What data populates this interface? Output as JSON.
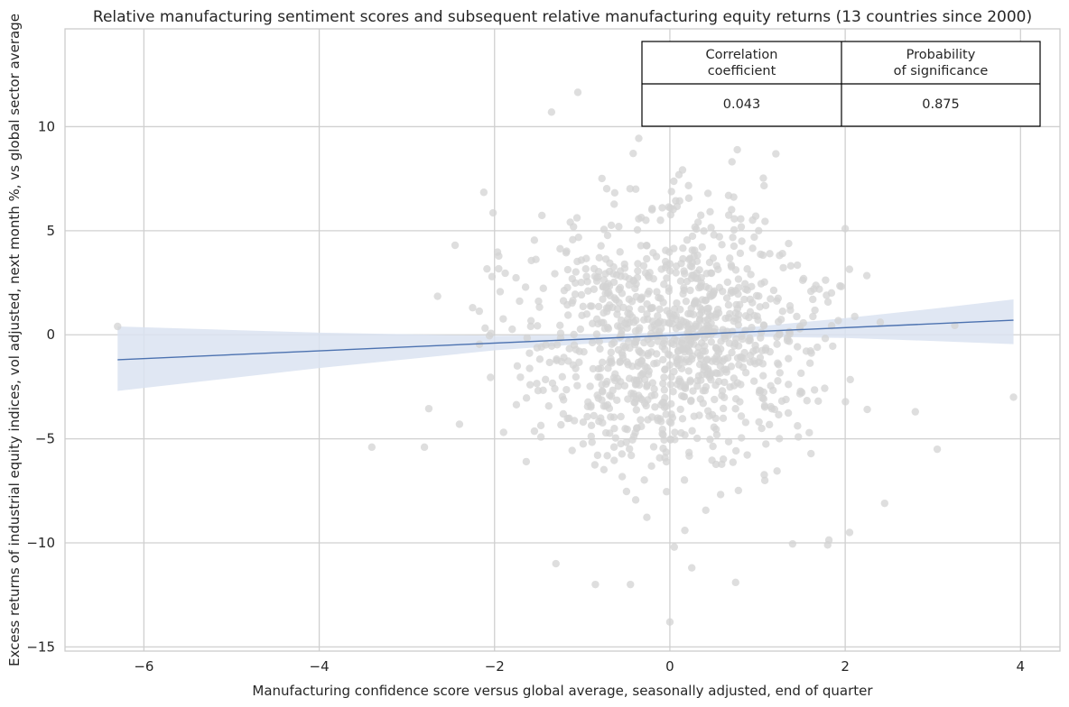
{
  "chart_data": {
    "type": "scatter",
    "title": "Relative manufacturing sentiment scores and subsequent relative manufacturing equity returns (13 countries since 2000)",
    "xlabel": "Manufacturing confidence score versus global average, seasonally adjusted, end of quarter",
    "ylabel": "Excess returns of industrial equity indices, vol adjusted, next month %, vs global sector average",
    "xlim": [
      -6.9,
      4.45
    ],
    "ylim": [
      -15.2,
      14.7
    ],
    "x_ticks": [
      -6,
      -4,
      -2,
      0,
      2,
      4
    ],
    "x_tick_labels": [
      "−6",
      "−4",
      "−2",
      "0",
      "2",
      "4"
    ],
    "y_ticks": [
      -15,
      -10,
      -5,
      0,
      5,
      10
    ],
    "y_tick_labels": [
      "−15",
      "−10",
      "−5",
      "0",
      "5",
      "10"
    ],
    "grid": true,
    "point_color": "#d3d3d3",
    "regression": {
      "x": [
        -6.3,
        3.92
      ],
      "y": [
        -1.2,
        0.7
      ],
      "color": "#4c72b0",
      "ci_color": "#dbe3f1",
      "ci_lower": [
        {
          "x": -6.3,
          "y": -2.7
        },
        {
          "x": -4,
          "y": -1.6
        },
        {
          "x": -2,
          "y": -0.75
        },
        {
          "x": -1,
          "y": -0.45
        },
        {
          "x": 0,
          "y": -0.22
        },
        {
          "x": 1,
          "y": -0.1
        },
        {
          "x": 2,
          "y": -0.15
        },
        {
          "x": 3,
          "y": -0.3
        },
        {
          "x": 3.92,
          "y": -0.45
        }
      ],
      "ci_upper": [
        {
          "x": -6.3,
          "y": 0.4
        },
        {
          "x": -4,
          "y": 0.1
        },
        {
          "x": -2,
          "y": -0.05
        },
        {
          "x": -1,
          "y": 0.0
        },
        {
          "x": 0,
          "y": 0.12
        },
        {
          "x": 1,
          "y": 0.4
        },
        {
          "x": 2,
          "y": 0.8
        },
        {
          "x": 3,
          "y": 1.25
        },
        {
          "x": 3.92,
          "y": 1.7
        }
      ]
    },
    "notable_points": [
      {
        "x": -6.3,
        "y": 0.4
      },
      {
        "x": -3.4,
        "y": -5.4
      },
      {
        "x": -2.8,
        "y": -5.4
      },
      {
        "x": -2.75,
        "y": -3.55
      },
      {
        "x": -2.65,
        "y": 1.85
      },
      {
        "x": -2.45,
        "y": 4.3
      },
      {
        "x": -2.4,
        "y": -4.3
      },
      {
        "x": -2.25,
        "y": 1.3
      },
      {
        "x": -1.35,
        "y": 10.7
      },
      {
        "x": -1.05,
        "y": 11.65
      },
      {
        "x": -1.3,
        "y": -11.0
      },
      {
        "x": -0.85,
        "y": -12.0
      },
      {
        "x": -0.45,
        "y": -12.0
      },
      {
        "x": 0,
        "y": -13.8
      },
      {
        "x": 0.05,
        "y": -10.2
      },
      {
        "x": 0.25,
        "y": -11.2
      },
      {
        "x": 0.75,
        "y": -11.9
      },
      {
        "x": 3.92,
        "y": -3.0
      },
      {
        "x": 3.05,
        "y": -5.5
      },
      {
        "x": 2.8,
        "y": -3.7
      },
      {
        "x": 2.45,
        "y": -8.1
      },
      {
        "x": 2.05,
        "y": -9.5
      },
      {
        "x": 1.8,
        "y": -10.1
      },
      {
        "x": 1.4,
        "y": -10.05
      },
      {
        "x": 2.0,
        "y": 5.1
      },
      {
        "x": 2.4,
        "y": 0.6
      },
      {
        "x": 3.25,
        "y": 0.45
      }
    ],
    "stats_table": {
      "headers": [
        [
          "Correlation",
          "coefficient"
        ],
        [
          "Probability",
          "of significance"
        ]
      ],
      "values": [
        "0.043",
        "0.875"
      ]
    }
  }
}
